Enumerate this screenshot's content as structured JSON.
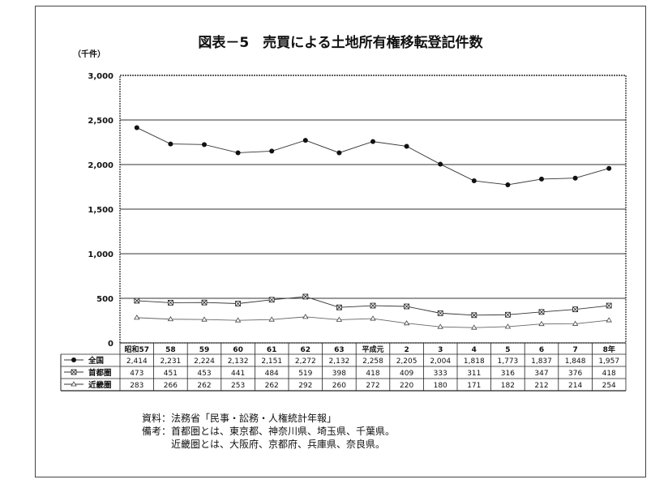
{
  "chart_data": {
    "type": "line",
    "title": "図表－5　売買による土地所有権移転登記件数",
    "ylabel": "（千件）",
    "ylim": [
      0,
      3000
    ],
    "yticks": [
      "0",
      "500",
      "1,000",
      "1,500",
      "2,000",
      "2,500",
      "3,000"
    ],
    "grid": true,
    "legend": "table-below",
    "categories": [
      "昭和57",
      "58",
      "59",
      "60",
      "61",
      "62",
      "63",
      "平成元",
      "2",
      "3",
      "4",
      "5",
      "6",
      "7",
      "8年"
    ],
    "series": [
      {
        "name": "全国",
        "marker": "filled-circle",
        "values": [
          2414,
          2231,
          2224,
          2132,
          2151,
          2272,
          2132,
          2258,
          2205,
          2004,
          1818,
          1773,
          1837,
          1848,
          1957
        ],
        "labels": [
          "2,414",
          "2,231",
          "2,224",
          "2,132",
          "2,151",
          "2,272",
          "2,132",
          "2,258",
          "2,205",
          "2,004",
          "1,818",
          "1,773",
          "1,837",
          "1,848",
          "1,957"
        ]
      },
      {
        "name": "首都圏",
        "marker": "x-square",
        "values": [
          473,
          451,
          453,
          441,
          484,
          519,
          398,
          418,
          409,
          333,
          311,
          316,
          347,
          376,
          418
        ],
        "labels": [
          "473",
          "451",
          "453",
          "441",
          "484",
          "519",
          "398",
          "418",
          "409",
          "333",
          "311",
          "316",
          "347",
          "376",
          "418"
        ]
      },
      {
        "name": "近畿圏",
        "marker": "open-triangle",
        "values": [
          283,
          266,
          262,
          253,
          262,
          292,
          260,
          272,
          220,
          180,
          171,
          182,
          212,
          214,
          254
        ],
        "labels": [
          "283",
          "266",
          "262",
          "253",
          "262",
          "292",
          "260",
          "272",
          "220",
          "180",
          "171",
          "182",
          "212",
          "214",
          "254"
        ]
      }
    ]
  },
  "notes": [
    "資料：法務省「民事・訟務・人権統計年報」",
    "備考：首都圏とは、東京都、神奈川県、埼玉県、千葉県。",
    "　　　近畿圏とは、大阪府、京都府、兵庫県、奈良県。"
  ]
}
